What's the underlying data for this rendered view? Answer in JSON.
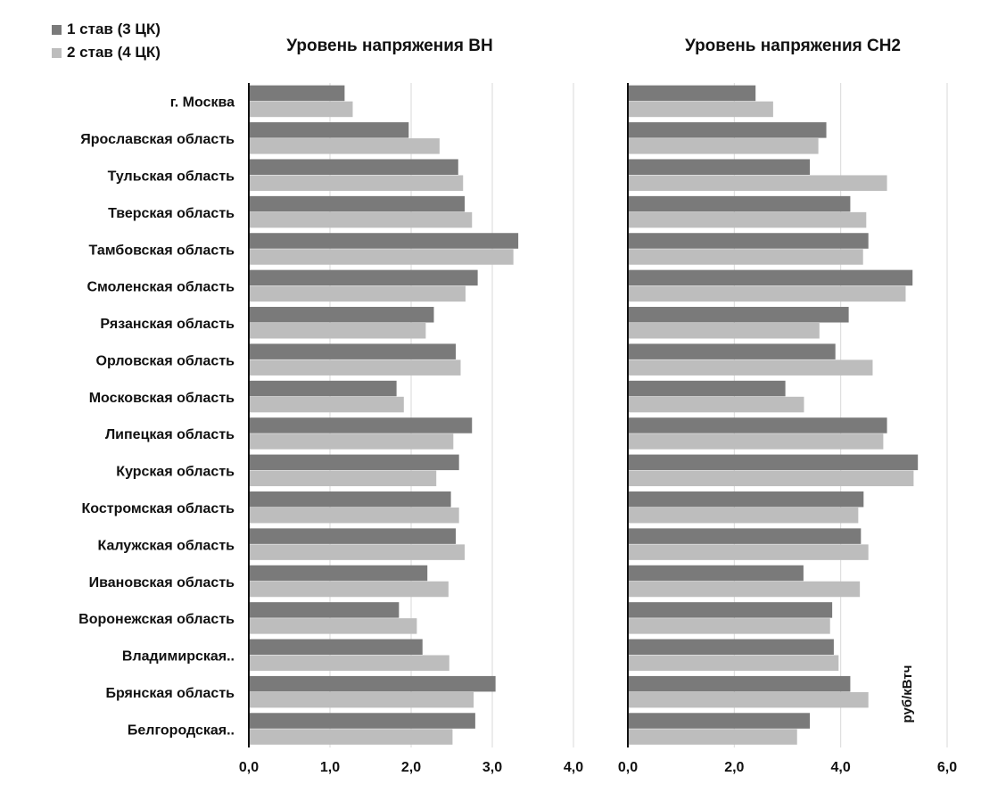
{
  "legend": [
    {
      "label": "1 став (3 ЦК)",
      "color": "#7a7a7a"
    },
    {
      "label": "2 став (4 ЦК)",
      "color": "#bdbdbd"
    }
  ],
  "chart_data": [
    {
      "type": "bar",
      "orientation": "horizontal",
      "title": "Уровень напряжения ВН",
      "xlabel": "",
      "ylabel": "",
      "xlim": [
        0,
        4
      ],
      "x_ticks": [
        "0,0",
        "1,0",
        "2,0",
        "3,0",
        "4,0"
      ],
      "grid": true,
      "categories": [
        "г. Москва",
        "Ярославская область",
        "Тульская область",
        "Тверская область",
        "Тамбовская область",
        "Смоленская область",
        "Рязанская область",
        "Орловская область",
        "Московская область",
        "Липецкая область",
        "Курская область",
        "Костромская область",
        "Калужская область",
        "Ивановская область",
        "Воронежская область",
        "Владимирская..",
        "Брянская область",
        "Белгородская.."
      ],
      "series": [
        {
          "name": "1 став (3 ЦК)",
          "values": [
            1.18,
            1.97,
            2.58,
            2.66,
            3.32,
            2.82,
            2.28,
            2.55,
            1.82,
            2.75,
            2.59,
            2.49,
            2.55,
            2.2,
            1.85,
            2.14,
            3.04,
            2.79
          ]
        },
        {
          "name": "2 став (4 ЦК)",
          "values": [
            1.28,
            2.35,
            2.64,
            2.75,
            3.26,
            2.67,
            2.18,
            2.61,
            1.91,
            2.52,
            2.31,
            2.59,
            2.66,
            2.46,
            2.07,
            2.47,
            2.77,
            2.51
          ]
        }
      ]
    },
    {
      "type": "bar",
      "orientation": "horizontal",
      "title": "Уровень напряжения СН2",
      "xlabel": "руб/кВтч",
      "ylabel": "",
      "xlim": [
        0,
        6
      ],
      "x_ticks": [
        "0,0",
        "2,0",
        "4,0",
        "6,0"
      ],
      "grid": true,
      "categories": [
        "г. Москва",
        "Ярославская область",
        "Тульская область",
        "Тверская область",
        "Тамбовская область",
        "Смоленская область",
        "Рязанская область",
        "Орловская область",
        "Московская область",
        "Липецкая область",
        "Курская область",
        "Костромская область",
        "Калужская область",
        "Ивановская область",
        "Воронежская область",
        "Владимирская..",
        "Брянская область",
        "Белгородская.."
      ],
      "series": [
        {
          "name": "1 став (3 ЦК)",
          "values": [
            2.4,
            3.73,
            3.42,
            4.18,
            4.52,
            5.35,
            4.15,
            3.9,
            2.96,
            4.87,
            5.45,
            4.43,
            4.38,
            3.3,
            3.84,
            3.87,
            4.18,
            3.42
          ]
        },
        {
          "name": "2 став (4 ЦК)",
          "values": [
            2.73,
            3.58,
            4.87,
            4.48,
            4.42,
            5.22,
            3.6,
            4.6,
            3.31,
            4.8,
            5.37,
            4.33,
            4.52,
            4.36,
            3.8,
            3.96,
            4.52,
            3.18
          ]
        }
      ]
    }
  ]
}
